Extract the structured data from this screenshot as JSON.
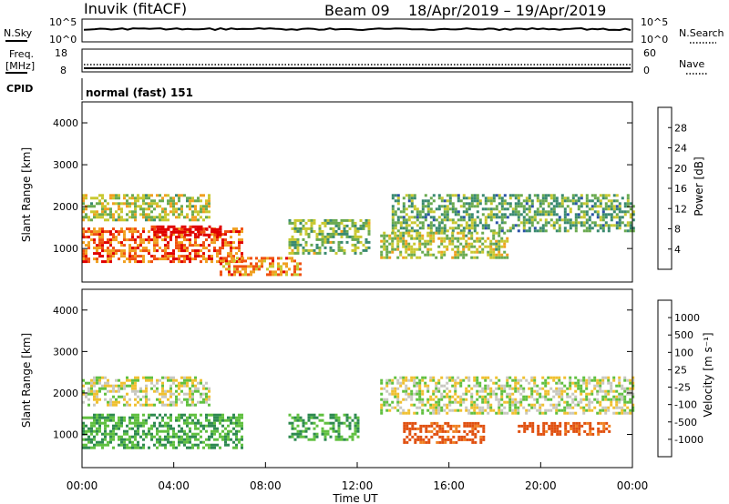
{
  "header": {
    "station": "Inuvik (fitACF)",
    "beam": "Beam 09",
    "date_range": "18/Apr/2019 – 19/Apr/2019"
  },
  "panels": {
    "nsky": {
      "left_label": "N.Sky",
      "left_ticks": [
        "10^5",
        "10^0"
      ],
      "right_label": "N.Search",
      "right_ticks": [
        "10^5",
        "10^0"
      ]
    },
    "freq": {
      "left_label_1": "Freq.",
      "left_label_2": "[MHz]",
      "left_ticks": [
        "18",
        "8"
      ],
      "right_label": "Nave",
      "right_ticks": [
        "60",
        "0"
      ]
    },
    "cpid": {
      "label": "CPID",
      "value": "normal (fast) 151"
    }
  },
  "colors": {
    "power_scale": [
      "#0000ff",
      "#2a52a8",
      "#3a8a70",
      "#6aaa50",
      "#c8c830",
      "#f0a020",
      "#f05010",
      "#e00000"
    ],
    "velocity_scale": [
      "#2030c0",
      "#3060b0",
      "#2e8a50",
      "#60c040",
      "#c8c8c0",
      "#f0c030",
      "#f08020",
      "#e05010",
      "#e00000"
    ],
    "grey_echo": "#c8c8c0"
  },
  "chart_data": [
    {
      "type": "heatmap",
      "panel": "power",
      "ylabel": "Slant Range [km]",
      "yticks": [
        1000,
        2000,
        3000,
        4000
      ],
      "ylim": [
        200,
        4500
      ],
      "xlim": [
        "00:00",
        "24:00"
      ],
      "colorbar": {
        "label": "Power [dB]",
        "ticks": [
          "4",
          "8",
          "12",
          "16",
          "20",
          "24",
          "28"
        ],
        "range": [
          0,
          30
        ]
      },
      "dominant_regions": [
        {
          "start": "00:00",
          "end": "07:00",
          "range_km": [
            700,
            1500
          ],
          "dB": 24
        },
        {
          "start": "03:00",
          "end": "06:00",
          "range_km": [
            1350,
            1550
          ],
          "dB": 30
        },
        {
          "start": "00:00",
          "end": "05:30",
          "range_km": [
            1700,
            2300
          ],
          "dB": 16
        },
        {
          "start": "06:00",
          "end": "09:30",
          "range_km": [
            350,
            800
          ],
          "dB": 22
        },
        {
          "start": "09:00",
          "end": "12:30",
          "range_km": [
            900,
            1700
          ],
          "dB": 14
        },
        {
          "start": "13:30",
          "end": "24:00",
          "range_km": [
            1400,
            2300
          ],
          "dB": 12
        },
        {
          "start": "13:00",
          "end": "18:30",
          "range_km": [
            800,
            1400
          ],
          "dB": 16
        }
      ]
    },
    {
      "type": "heatmap",
      "panel": "velocity",
      "ylabel": "Slant Range [km]",
      "yticks": [
        1000,
        2000,
        3000,
        4000
      ],
      "ylim": [
        200,
        4500
      ],
      "xlim": [
        "00:00",
        "24:00"
      ],
      "xticks": [
        "00:00",
        "04:00",
        "08:00",
        "12:00",
        "16:00",
        "20:00",
        "00:00"
      ],
      "xlabel": "Time UT",
      "colorbar": {
        "label": "Velocity [m s⁻¹]",
        "ticks": [
          "1000",
          "500",
          "100",
          "25",
          "-25",
          "-100",
          "-500",
          "-1000"
        ]
      },
      "dominant_regions": [
        {
          "start": "00:00",
          "end": "05:30",
          "range_km": [
            1700,
            2400
          ],
          "ms": 0
        },
        {
          "start": "13:00",
          "end": "24:00",
          "range_km": [
            1500,
            2400
          ],
          "ms": 0
        },
        {
          "start": "00:00",
          "end": "07:00",
          "range_km": [
            700,
            1500
          ],
          "ms": 100
        },
        {
          "start": "09:00",
          "end": "12:00",
          "range_km": [
            900,
            1500
          ],
          "ms": 100
        },
        {
          "start": "14:00",
          "end": "17:30",
          "range_km": [
            800,
            1300
          ],
          "ms": -300
        },
        {
          "start": "19:00",
          "end": "23:00",
          "range_km": [
            1000,
            1300
          ],
          "ms": -300
        }
      ]
    }
  ]
}
